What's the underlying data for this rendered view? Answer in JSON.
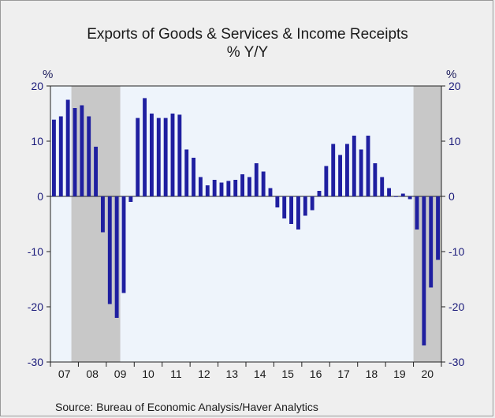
{
  "chart_data": {
    "type": "bar",
    "title": "Exports of Goods & Services & Income Receipts",
    "subtitle": "% Y/Y",
    "ylabel_left": "%",
    "ylabel_right": "%",
    "ylim": [
      -30,
      20
    ],
    "yticks": [
      20,
      10,
      0,
      -10,
      -20,
      -30
    ],
    "year_labels": [
      "07",
      "08",
      "09",
      "10",
      "11",
      "12",
      "13",
      "14",
      "15",
      "16",
      "17",
      "18",
      "19",
      "20"
    ],
    "x_start": "2007Q1",
    "values": [
      13.9,
      14.5,
      17.5,
      16.0,
      16.5,
      14.5,
      9.0,
      -6.5,
      -19.5,
      -22.0,
      -17.5,
      -1.0,
      14.2,
      17.8,
      15.0,
      14.2,
      14.2,
      15.0,
      14.8,
      8.5,
      7.0,
      3.5,
      2.0,
      3.0,
      2.5,
      2.8,
      3.0,
      4.0,
      3.5,
      6.0,
      4.5,
      1.5,
      -2.0,
      -4.0,
      -5.0,
      -6.0,
      -3.5,
      -2.5,
      1.0,
      5.5,
      9.5,
      7.5,
      9.5,
      11.0,
      8.5,
      11.0,
      6.0,
      3.5,
      1.5,
      0.0,
      0.5,
      -0.5,
      -6.0,
      -27.0,
      -16.5,
      -11.5
    ],
    "recessions": [
      [
        "2007Q4",
        "2009Q2"
      ],
      [
        "2020Q1",
        "2020Q4"
      ]
    ],
    "colors": {
      "bar": "#1f1fa0",
      "plot_bg": "#eef4fb",
      "recession": "#c8c8c8",
      "axis": "#222222"
    },
    "grid": false
  },
  "source": "Source:  Bureau of Economic Analysis/Haver Analytics"
}
